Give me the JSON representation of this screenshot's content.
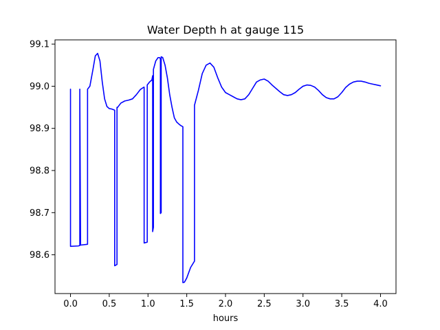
{
  "chart_data": {
    "type": "line",
    "title": "Water Depth h at gauge 115",
    "xlabel": "hours",
    "ylabel": "",
    "xlim": [
      -0.2,
      4.2
    ],
    "ylim": [
      98.508,
      99.11
    ],
    "xticks": [
      0.0,
      0.5,
      1.0,
      1.5,
      2.0,
      2.5,
      3.0,
      3.5,
      4.0
    ],
    "xtick_labels": [
      "0.0",
      "0.5",
      "1.0",
      "1.5",
      "2.0",
      "2.5",
      "3.0",
      "3.5",
      "4.0"
    ],
    "yticks": [
      98.6,
      98.7,
      98.8,
      98.9,
      99.0,
      99.1
    ],
    "ytick_labels": [
      "98.6",
      "98.7",
      "98.8",
      "98.9",
      "99.0",
      "99.1"
    ],
    "grid": false,
    "legend": "none",
    "series": [
      {
        "color": "#0000ff",
        "x": [
          0.0,
          0.0,
          0.1,
          0.12,
          0.12,
          0.12,
          0.12,
          0.13,
          0.22,
          0.22,
          0.25,
          0.29,
          0.32,
          0.35,
          0.38,
          0.41,
          0.44,
          0.47,
          0.5,
          0.53,
          0.56,
          0.57,
          0.57,
          0.6,
          0.6,
          0.6,
          0.65,
          0.7,
          0.75,
          0.8,
          0.85,
          0.9,
          0.94,
          0.95,
          0.95,
          0.99,
          0.99,
          1.02,
          1.05,
          1.06,
          1.06,
          1.07,
          1.07,
          1.1,
          1.13,
          1.15,
          1.16,
          1.16,
          1.17,
          1.17,
          1.19,
          1.22,
          1.25,
          1.28,
          1.31,
          1.34,
          1.37,
          1.4,
          1.42,
          1.44,
          1.45,
          1.45,
          1.47,
          1.5,
          1.55,
          1.6,
          1.6,
          1.65,
          1.7,
          1.75,
          1.8,
          1.85,
          1.9,
          1.95,
          2.0,
          2.05,
          2.1,
          2.15,
          2.2,
          2.25,
          2.3,
          2.35,
          2.4,
          2.45,
          2.5,
          2.55,
          2.6,
          2.65,
          2.7,
          2.75,
          2.8,
          2.85,
          2.9,
          2.95,
          3.0,
          3.05,
          3.1,
          3.15,
          3.2,
          3.25,
          3.3,
          3.35,
          3.4,
          3.45,
          3.5,
          3.55,
          3.6,
          3.65,
          3.7,
          3.75,
          3.8,
          3.85,
          3.9,
          3.95,
          4.0
        ],
        "y": [
          98.993,
          98.62,
          98.621,
          98.622,
          98.993,
          98.623,
          98.993,
          98.623,
          98.625,
          98.993,
          99.0,
          99.04,
          99.072,
          99.078,
          99.06,
          99.01,
          98.97,
          98.952,
          98.947,
          98.946,
          98.944,
          98.943,
          98.574,
          98.577,
          98.95,
          98.948,
          98.96,
          98.965,
          98.967,
          98.97,
          98.98,
          98.992,
          98.997,
          98.998,
          98.628,
          98.63,
          99.003,
          99.01,
          99.015,
          99.025,
          98.655,
          98.665,
          99.04,
          99.06,
          99.068,
          99.068,
          99.065,
          98.698,
          98.7,
          99.07,
          99.068,
          99.05,
          99.02,
          98.98,
          98.95,
          98.925,
          98.915,
          98.91,
          98.907,
          98.905,
          98.904,
          98.534,
          98.535,
          98.545,
          98.57,
          98.585,
          98.955,
          98.99,
          99.03,
          99.05,
          99.055,
          99.045,
          99.02,
          98.998,
          98.985,
          98.98,
          98.975,
          98.97,
          98.968,
          98.97,
          98.98,
          98.995,
          99.01,
          99.015,
          99.017,
          99.012,
          99.003,
          98.995,
          98.987,
          98.98,
          98.978,
          98.98,
          98.985,
          98.993,
          99.0,
          99.003,
          99.002,
          98.998,
          98.99,
          98.98,
          98.973,
          98.97,
          98.97,
          98.975,
          98.985,
          98.997,
          99.005,
          99.01,
          99.012,
          99.012,
          99.01,
          99.007,
          99.005,
          99.003,
          99.001
        ]
      }
    ]
  }
}
